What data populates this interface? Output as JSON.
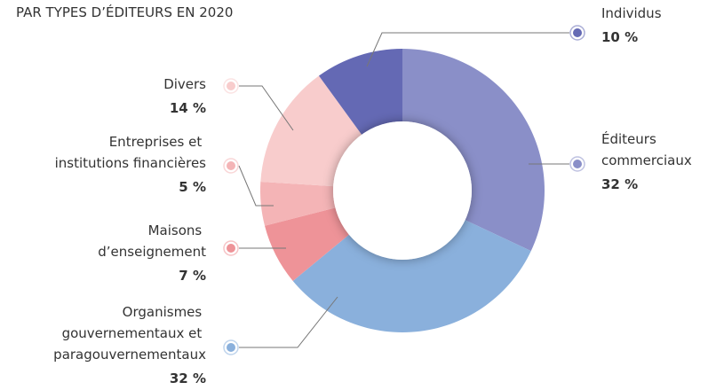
{
  "chart_data": {
    "type": "donut",
    "title": "PAR TYPES D’ÉDITEURS EN 2020",
    "categories": [
      "Éditeurs commerciaux",
      "Organismes gouvernementaux et paragouvernementaux",
      "Maisons d’enseignement",
      "Entreprises et institutions financières",
      "Divers",
      "Individus"
    ],
    "values": [
      32,
      32,
      7,
      5,
      14,
      10
    ],
    "value_labels": [
      "32 %",
      "32 %",
      "7 %",
      "5 %",
      "14 %",
      "10 %"
    ],
    "colors": [
      "#8a8fc8",
      "#8ab0dc",
      "#ee9398",
      "#f4b4b6",
      "#f8cccc",
      "#6469b4"
    ]
  }
}
